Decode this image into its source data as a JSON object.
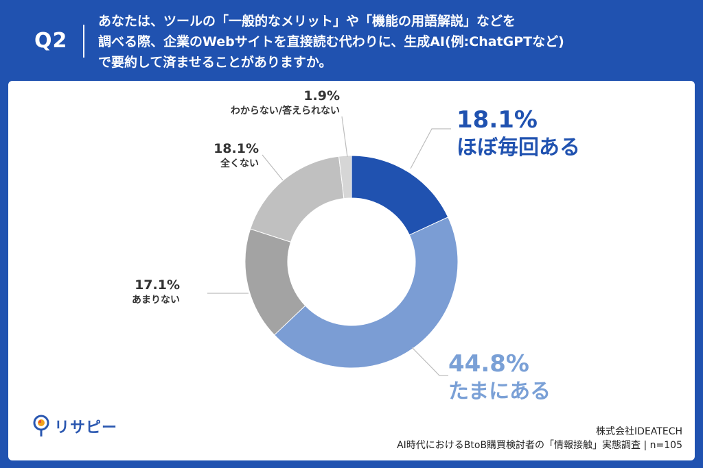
{
  "header": {
    "q_label": "Q2",
    "question_lines": [
      "あなたは、ツールの「一般的なメリット」や「機能の用語解説」などを",
      "調べる際、企業のWebサイトを直接読む代わりに、生成AI(例:ChatGPTなど)",
      "で要約して済ませることがありますか。"
    ]
  },
  "chart_data": {
    "type": "pie",
    "donut": true,
    "start_angle_deg": 0,
    "direction": "clockwise",
    "slices": [
      {
        "label": "ほぼ毎回ある",
        "pct_label": "18.1%",
        "value": 18.1,
        "color": "#2052b0"
      },
      {
        "label": "たまにある",
        "pct_label": "44.8%",
        "value": 44.8,
        "color": "#7b9dd4"
      },
      {
        "label": "あまりない",
        "pct_label": "17.1%",
        "value": 17.1,
        "color": "#a3a3a3"
      },
      {
        "label": "全くない",
        "pct_label": "18.1%",
        "value": 18.1,
        "color": "#c0c0c0"
      },
      {
        "label": "わからない/答えられない",
        "pct_label": "1.9%",
        "value": 1.9,
        "color": "#d6d6d6"
      }
    ]
  },
  "brand": {
    "logo_text": "リサピー"
  },
  "footer": {
    "company": "株式会社IDEATECH",
    "survey": "AI時代におけるBtoB購買検討者の「情報接触」実態調査 | n=105"
  }
}
